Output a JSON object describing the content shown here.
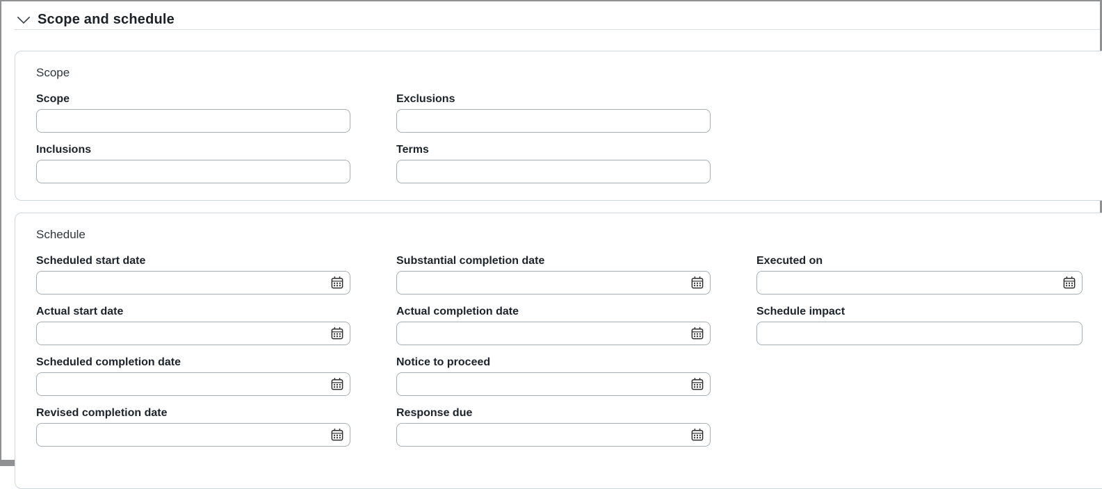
{
  "section": {
    "title": "Scope and schedule"
  },
  "scope_card": {
    "title": "Scope",
    "fields": {
      "scope": {
        "label": "Scope",
        "value": "",
        "type": "text"
      },
      "exclusions": {
        "label": "Exclusions",
        "value": "",
        "type": "text"
      },
      "inclusions": {
        "label": "Inclusions",
        "value": "",
        "type": "text"
      },
      "terms": {
        "label": "Terms",
        "value": "",
        "type": "text"
      }
    }
  },
  "schedule_card": {
    "title": "Schedule",
    "fields": {
      "scheduled_start_date": {
        "label": "Scheduled start date",
        "value": "",
        "type": "date"
      },
      "substantial_completion_date": {
        "label": "Substantial completion date",
        "value": "",
        "type": "date"
      },
      "executed_on": {
        "label": "Executed on",
        "value": "",
        "type": "date"
      },
      "actual_start_date": {
        "label": "Actual start date",
        "value": "",
        "type": "date"
      },
      "actual_completion_date": {
        "label": "Actual completion date",
        "value": "",
        "type": "date"
      },
      "schedule_impact": {
        "label": "Schedule impact",
        "value": "",
        "type": "text"
      },
      "scheduled_completion_date": {
        "label": "Scheduled completion date",
        "value": "",
        "type": "date"
      },
      "notice_to_proceed": {
        "label": "Notice to proceed",
        "value": "",
        "type": "date"
      },
      "revised_completion_date": {
        "label": "Revised completion date",
        "value": "",
        "type": "date"
      },
      "response_due": {
        "label": "Response due",
        "value": "",
        "type": "date"
      }
    }
  },
  "icons": {
    "section_toggle": "chevron-down-icon",
    "date_picker": "calendar-icon"
  },
  "colors": {
    "frame_border": "#8f9193",
    "header_divider": "#dbe1e6",
    "card_border": "#cfd6dd",
    "input_border": "#a6adb5",
    "text_primary": "#1c232a",
    "card_title_text": "#2f363c",
    "icon": "#2d2d2d",
    "background": "#ffffff"
  }
}
